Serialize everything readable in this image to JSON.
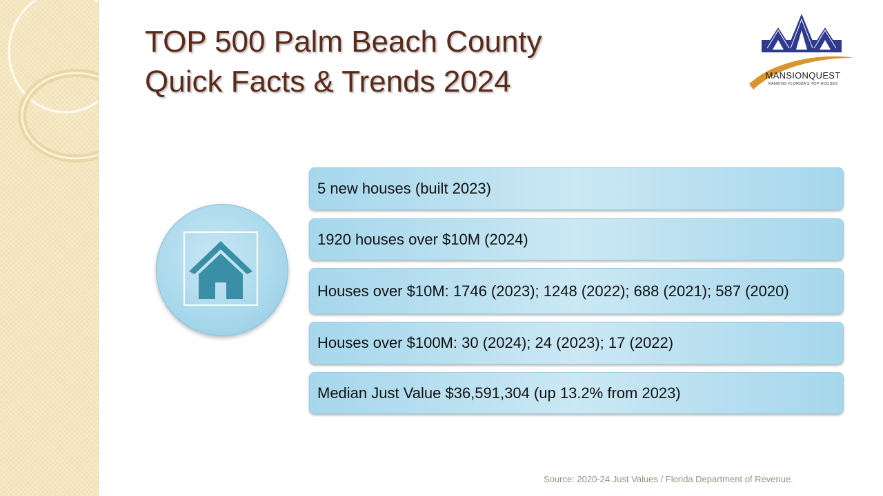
{
  "slide": {
    "title_line1": "TOP 500 Palm Beach County",
    "title_line2": "Quick Facts & Trends 2024"
  },
  "logo": {
    "name": "MANSIONQUEST",
    "tagline": "RANKING FLORIDA'S TOP HOUSES",
    "colors": {
      "houses": "#2e3a8c",
      "swoosh": "#d9952f"
    }
  },
  "icon": {
    "name": "house-icon",
    "color": "#3a8fa6"
  },
  "facts": [
    "5 new houses (built 2023)",
    "1920 houses over $10M (2024)",
    "Houses over $10M: 1746 (2023); 1248 (2022); 688 (2021); 587 (2020)",
    "Houses over $100M: 30 (2024); 24 (2023); 17 (2022)",
    "Median Just Value $36,591,304 (up 13.2% from 2023)"
  ],
  "source": "Source: 2020-24 Just Values / Florida Department of Revenue.",
  "colors": {
    "title": "#5b2a1a",
    "fact_box": "#a6d7ec",
    "strip": "#f4e6bf"
  }
}
